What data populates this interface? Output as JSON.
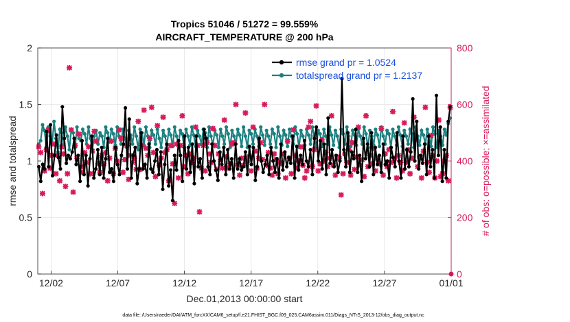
{
  "chart_data": {
    "type": "line",
    "title": "Tropics 51046 / 51272 = 99.559%",
    "subtitle": "AIRCRAFT_TEMPERATURE @ 200 hPa",
    "xlabel": "Dec.01,2013 00:00:00 start",
    "ylabel": "rmse and totalspread",
    "ylabel_right": "# of obs: o=possible; ×=assimilated",
    "x_ticks": [
      "12/02",
      "12/07",
      "12/12",
      "12/17",
      "12/22",
      "12/27",
      "01/01"
    ],
    "x_tick_days": [
      1,
      6,
      11,
      16,
      21,
      26,
      31
    ],
    "xlim_days": [
      0,
      31
    ],
    "ylim": [
      0,
      2
    ],
    "y_ticks": [
      "0",
      "0.5",
      "1",
      "1.5",
      "2"
    ],
    "ylim_right": [
      0,
      800
    ],
    "y_ticks_right": [
      "0",
      "200",
      "400",
      "600",
      "800"
    ],
    "grid": true,
    "legend_position": "top-right",
    "colors": {
      "rmse": "#000000",
      "spread": "#1b8080",
      "obs": "#d81b5a",
      "legend_text": "#1a4fe0",
      "grid": "#e4e4e4"
    },
    "series": [
      {
        "name": "rmse grand pr = 1.0524",
        "axis": "left",
        "values": [
          0.95,
          0.82,
          0.97,
          0.93,
          1.26,
          0.95,
          1.32,
          0.87,
          1.05,
          1.23,
          1.03,
          0.93,
          1.48,
          1.2,
          0.98,
          1.05,
          1.02,
          1.08,
          1.2,
          0.97,
          1.05,
          0.82,
          1.18,
          0.88,
          1.05,
          0.78,
          1.02,
          1.22,
          0.85,
          0.93,
          1.1,
          0.88,
          1.12,
          0.85,
          1.02,
          1.2,
          0.9,
          0.93,
          0.82,
          1.12,
          0.97,
          0.88,
          1.05,
          1.15,
          1.47,
          0.93,
          1.37,
          0.85,
          1.05,
          1.12,
          0.8,
          0.93,
          1.25,
          0.93,
          0.97,
          0.85,
          1.15,
          0.93,
          0.9,
          1.0,
          1.1,
          0.88,
          1.08,
          0.75,
          0.97,
          1.15,
          0.78,
          0.92,
          0.65,
          1.05,
          0.92,
          1.18,
          1.05,
          0.82,
          1.22,
          0.93,
          1.12,
          0.9,
          1.15,
          0.8,
          1.22,
          0.95,
          1.02,
          0.85,
          1.28,
          1.2,
          0.95,
          0.88,
          1.15,
          1.0,
          0.92,
          0.83,
          1.08,
          0.97,
          1.12,
          0.88,
          1.1,
          0.93,
          1.02,
          0.85,
          1.15,
          0.93,
          1.02,
          0.92,
          0.95,
          1.08,
          0.88,
          1.13,
          0.97,
          1.12,
          0.83,
          0.95,
          1.2,
          1.0,
          0.9,
          0.97,
          1.05,
          0.88,
          1.12,
          1.0,
          0.9,
          1.02,
          0.85,
          1.15,
          0.92,
          1.08,
          0.95,
          1.03,
          0.98,
          1.22,
          0.85,
          1.13,
          0.92,
          1.05,
          0.97,
          1.18,
          1.0,
          0.95,
          1.1,
          0.88,
          1.2,
          1.3,
          1.0,
          1.18,
          0.93,
          1.15,
          0.88,
          1.38,
          0.98,
          1.1,
          0.95,
          1.05,
          0.9,
          1.0,
          1.73,
          1.1,
          0.95,
          1.25,
          0.9,
          1.08,
          1.02,
          1.28,
          0.9,
          1.05,
          0.82,
          1.2,
          1.02,
          1.15,
          0.95,
          1.25,
          0.88,
          1.12,
          0.97,
          1.05,
          0.9,
          1.15,
          0.97,
          1.0,
          0.85,
          1.12,
          1.03,
          0.95,
          1.25,
          1.0,
          0.85,
          1.22,
          0.93,
          1.1,
          0.95,
          1.08,
          1.55,
          1.0,
          1.35,
          0.93,
          1.05,
          0.98,
          1.15,
          0.88,
          1.22,
          0.95,
          1.1,
          0.85,
          1.58,
          1.05,
          1.3,
          0.82,
          1.1,
          0.85,
          1.35,
          1.48
        ]
      },
      {
        "name": "totalspread grand pr = 1.2137",
        "axis": "left",
        "values": [
          1.15,
          1.18,
          1.32,
          1.27,
          1.12,
          1.3,
          1.22,
          1.15,
          1.35,
          1.2,
          1.08,
          1.28,
          1.25,
          1.15,
          1.3,
          1.22,
          1.1,
          1.28,
          1.25,
          1.12,
          1.3,
          1.2,
          1.18,
          1.28,
          1.24,
          1.15,
          1.3,
          1.2,
          1.1,
          1.22,
          1.27,
          1.15,
          1.25,
          1.22,
          1.12,
          1.3,
          1.25,
          1.17,
          1.28,
          1.24,
          1.14,
          1.3,
          1.22,
          1.15,
          1.28,
          1.2,
          1.12,
          1.27,
          1.23,
          1.15,
          1.3,
          1.22,
          1.1,
          1.28,
          1.25,
          1.14,
          1.3,
          1.22,
          1.12,
          1.27,
          1.23,
          1.15,
          1.28,
          1.2,
          1.12,
          1.27,
          1.22,
          1.14,
          1.28,
          1.23,
          1.13,
          1.3,
          1.22,
          1.15,
          1.27,
          1.24,
          1.12,
          1.28,
          1.22,
          1.14,
          1.3,
          1.23,
          1.13,
          1.27,
          1.22,
          1.15,
          1.28,
          1.25,
          1.12,
          1.3,
          1.22,
          1.14,
          1.27,
          1.23,
          1.12,
          1.28,
          1.22,
          1.15,
          1.3,
          1.24,
          1.12,
          1.27,
          1.22,
          1.15,
          1.28,
          1.23,
          1.13,
          1.3,
          1.22,
          1.12,
          1.27,
          1.24,
          1.15,
          1.28,
          1.22,
          1.13,
          1.3,
          1.23,
          1.14,
          1.27,
          1.22,
          1.15,
          1.28,
          1.24,
          1.12,
          1.3,
          1.22,
          1.14,
          1.27,
          1.23,
          1.13,
          1.28,
          1.22,
          1.15,
          1.3,
          1.24,
          1.12,
          1.27,
          1.22,
          1.14,
          1.28,
          1.23,
          1.15,
          1.3,
          1.22,
          1.12,
          1.27,
          1.24,
          1.13,
          1.28,
          1.22,
          1.15,
          1.3,
          1.23,
          1.14,
          1.27,
          1.22,
          1.12,
          1.28,
          1.24,
          1.15,
          1.3,
          1.22,
          1.13,
          1.27,
          1.23,
          1.14,
          1.28,
          1.22,
          1.15,
          1.3,
          1.24,
          1.12,
          1.27,
          1.22,
          1.14,
          1.28,
          1.23,
          1.13,
          1.3,
          1.22,
          1.15,
          1.27,
          1.24,
          1.12,
          1.28,
          1.22,
          1.14,
          1.3,
          1.23,
          1.13,
          1.27,
          1.22,
          1.15,
          1.28,
          1.24,
          1.12,
          1.3,
          1.22,
          1.14,
          1.27,
          1.23,
          1.15,
          1.28,
          1.22,
          1.13,
          1.3,
          1.24,
          1.12,
          1.27,
          1.22,
          1.14,
          1.28,
          1.23,
          1.33,
          1.38
        ]
      },
      {
        "name": "# of obs assimilated",
        "axis": "right",
        "marker": "x",
        "values": [
          450,
          430,
          285,
          365,
          440,
          510,
          375,
          420,
          460,
          355,
          420,
          330,
          450,
          425,
          310,
          355,
          730,
          510,
          290,
          455,
          410,
          495,
          380,
          360,
          430,
          395,
          450,
          355,
          435,
          505,
          470,
          390,
          360,
          420,
          390,
          430,
          330,
          410,
          470,
          355,
          445,
          400,
          510,
          480,
          360,
          405,
          455,
          335,
          420,
          395,
          410,
          370,
          540,
          370,
          455,
          580,
          445,
          420,
          480,
          590,
          430,
          345,
          525,
          385,
          410,
          555,
          430,
          440,
          330,
          455,
          390,
          250,
          460,
          340,
          455,
          560,
          380,
          420,
          355,
          425,
          395,
          410,
          520,
          455,
          220,
          375,
          455,
          365,
          465,
          425,
          395,
          515,
          455,
          370,
          425,
          405,
          375,
          545,
          415,
          375,
          390,
          460,
          465,
          600,
          385,
          350,
          410,
          385,
          570,
          400,
          415,
          365,
          520,
          435,
          375,
          410,
          465,
          405,
          600,
          385,
          430,
          375,
          350,
          425,
          405,
          355,
          395,
          390,
          425,
          340,
          470,
          410,
          355,
          510,
          420,
          375,
          400,
          450,
          385,
          340,
          365,
          520,
          540,
          380,
          440,
          595,
          365,
          390,
          475,
          400,
          430,
          380,
          410,
          560,
          385,
          350,
          415,
          410,
          280,
          355,
          425,
          395,
          440,
          350,
          465,
          370,
          415,
          520,
          385,
          405,
          345,
          560,
          380,
          420,
          390,
          445,
          365,
          410,
          390,
          515,
          350,
          425,
          380,
          440,
          395,
          575,
          410,
          340,
          420,
          395,
          365,
          535,
          395,
          440,
          355,
          410,
          555,
          475,
          380,
          415,
          340,
          435,
          590,
          395,
          360,
          490,
          420,
          340,
          400,
          545,
          345,
          355,
          400,
          420,
          330,
          590
        ]
      }
    ],
    "obs_possible_total_right": 0
  },
  "legend": {
    "rmse_label": "rmse grand pr = 1.0524",
    "spread_label": "totalspread grand pr = 1.2137"
  },
  "footer": {
    "text": "data file: /Users/raeder/DAI/ATM_forcXX/CAM6_setup/f.e21.FHIST_BGC.f09_025.CAM6assim.011/Diags_NTrS_2013-12/obs_diag_output.nc"
  }
}
